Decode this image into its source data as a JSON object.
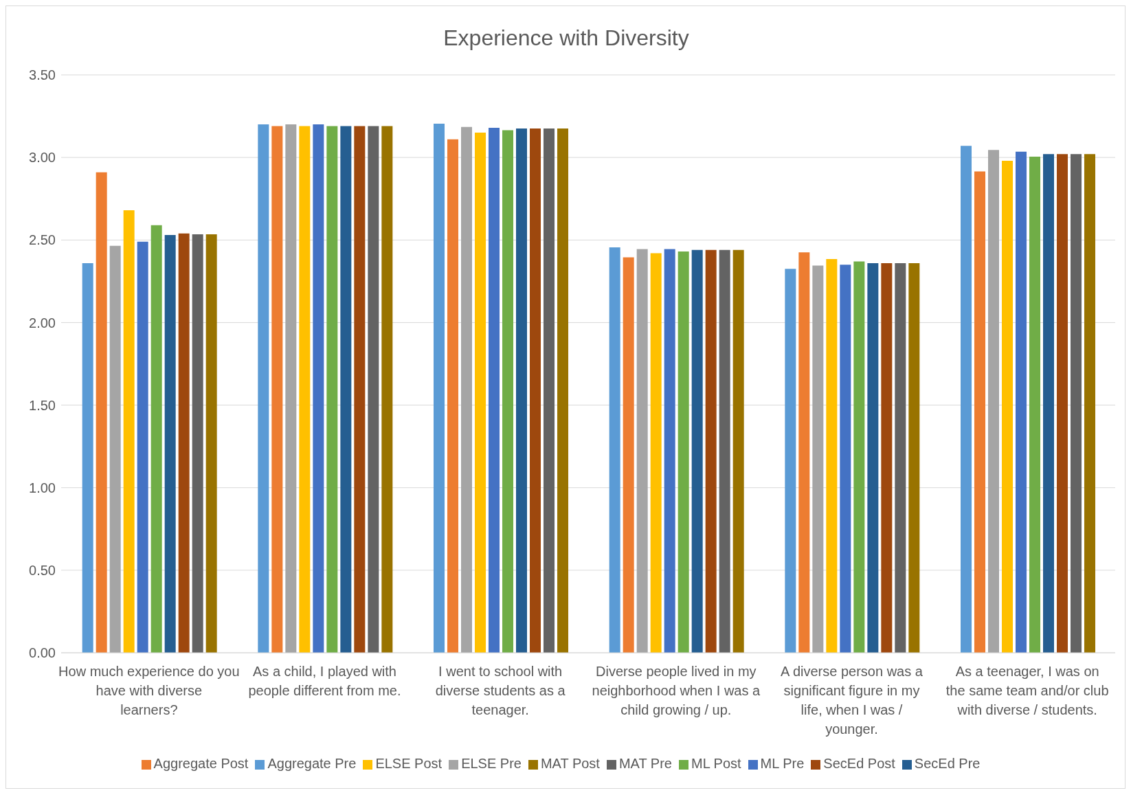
{
  "chart_data": {
    "type": "bar",
    "title": "Experience with Diversity",
    "categories": [
      "How much experience do you have with diverse learners?",
      "As a child, I played with people different from me.",
      "I went to school with diverse students as a teenager.",
      "Diverse people lived in my neighborhood when I was a child growing / up.",
      "A diverse person was a significant figure in my life, when I was / younger.",
      "As a teenager, I was on the same team and/or club with diverse / students."
    ],
    "series": [
      {
        "name": "Aggregate Pre",
        "color": "#5b9bd5",
        "values": [
          2.36,
          3.2,
          3.205,
          2.455,
          2.325,
          3.07
        ]
      },
      {
        "name": "Aggregate Post",
        "color": "#ed7d31",
        "values": [
          2.91,
          3.19,
          3.11,
          2.395,
          2.425,
          2.915
        ]
      },
      {
        "name": "ELSE Pre",
        "color": "#a5a5a5",
        "values": [
          2.465,
          3.2,
          3.185,
          2.445,
          2.345,
          3.045
        ]
      },
      {
        "name": "ELSE Post",
        "color": "#ffc000",
        "values": [
          2.68,
          3.19,
          3.15,
          2.42,
          2.385,
          2.98
        ]
      },
      {
        "name": "ML Pre",
        "color": "#4472c4",
        "values": [
          2.49,
          3.2,
          3.18,
          2.445,
          2.35,
          3.035
        ]
      },
      {
        "name": "ML Post",
        "color": "#70ad47",
        "values": [
          2.59,
          3.19,
          3.165,
          2.43,
          2.37,
          3.005
        ]
      },
      {
        "name": "SecEd Pre",
        "color": "#255e91",
        "values": [
          2.53,
          3.19,
          3.175,
          2.44,
          2.36,
          3.02
        ]
      },
      {
        "name": "SecEd Post",
        "color": "#9e480e",
        "values": [
          2.54,
          3.19,
          3.175,
          2.44,
          2.36,
          3.02
        ]
      },
      {
        "name": "MAT Pre",
        "color": "#636363",
        "values": [
          2.535,
          3.19,
          3.175,
          2.44,
          2.36,
          3.02
        ]
      },
      {
        "name": "MAT Post",
        "color": "#997300",
        "values": [
          2.535,
          3.19,
          3.175,
          2.44,
          2.36,
          3.02
        ]
      }
    ],
    "ylim": [
      0,
      3.5
    ],
    "yticks": [
      {
        "value": 0,
        "label": "0.00"
      },
      {
        "value": 0.5,
        "label": "0.50"
      },
      {
        "value": 1,
        "label": "1.00"
      },
      {
        "value": 1.5,
        "label": "1.50"
      },
      {
        "value": 2,
        "label": "2.00"
      },
      {
        "value": 2.5,
        "label": "2.50"
      },
      {
        "value": 3,
        "label": "3.00"
      },
      {
        "value": 3.5,
        "label": "3.50"
      }
    ],
    "grid": "y",
    "legend": "bottom"
  }
}
